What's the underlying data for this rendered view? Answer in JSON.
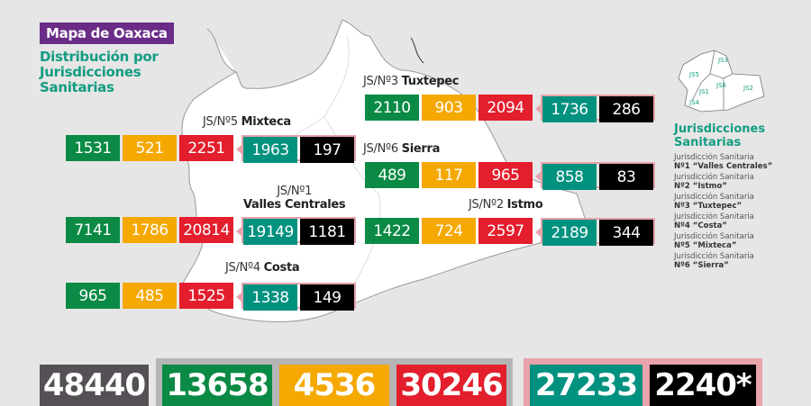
{
  "header": {
    "title": "Mapa de Oaxaca",
    "subtitle_lines": [
      "Distribución por",
      "Jurisdicciones",
      "Sanitarias"
    ]
  },
  "colors": {
    "green": "#0a8a44",
    "orange": "#f5a800",
    "red": "#e31e2d",
    "teal": "#00917f",
    "black": "#000000",
    "gray": "#555056",
    "purple": "#6a2c87",
    "pink": "#e9a3ab"
  },
  "jurisdictions": [
    {
      "prefix": "JS/Nº5",
      "name": "Mixteca",
      "values": [
        "1531",
        "521",
        "2251",
        "1963",
        "197"
      ]
    },
    {
      "prefix": "JS/Nº1",
      "name": "Valles Centrales",
      "values": [
        "7141",
        "1786",
        "20814",
        "19149",
        "1181"
      ]
    },
    {
      "prefix": "JS/Nº4",
      "name": "Costa",
      "values": [
        "965",
        "485",
        "1525",
        "1338",
        "149"
      ]
    },
    {
      "prefix": "JS/Nº3",
      "name": "Tuxtepec",
      "values": [
        "2110",
        "903",
        "2094",
        "1736",
        "286"
      ]
    },
    {
      "prefix": "JS/Nº6",
      "name": "Sierra",
      "values": [
        "489",
        "117",
        "965",
        "858",
        "83"
      ]
    },
    {
      "prefix": "JS/Nº2",
      "name": "Istmo",
      "values": [
        "1422",
        "724",
        "2597",
        "2189",
        "344"
      ]
    }
  ],
  "totals": [
    "48440",
    "13658",
    "4536",
    "30246",
    "27233",
    "2240*"
  ],
  "mini_map": [
    "JS1",
    "JS2",
    "JS3",
    "JS4",
    "JS5",
    "JS6"
  ],
  "legend": {
    "title_lines": [
      "Jurisdicciones",
      "Sanitarias"
    ],
    "items": [
      {
        "line1": "Jurisdicción Sanitaria",
        "line2": "Nº1 “Valles Centrales”"
      },
      {
        "line1": "Jurisdicción Sanitaria",
        "line2": "Nº2 “Istmo”"
      },
      {
        "line1": "Jurisdicción Sanitaria",
        "line2": "Nº3 “Tuxtepec”"
      },
      {
        "line1": "Jurisdicción Sanitaria",
        "line2": "Nº4 “Costa”"
      },
      {
        "line1": "Jurisdicción Sanitaria",
        "line2": "Nº5 “Mixteca”"
      },
      {
        "line1": "Jurisdicción Sanitaria",
        "line2": "Nº6 “Sierra”"
      }
    ]
  }
}
